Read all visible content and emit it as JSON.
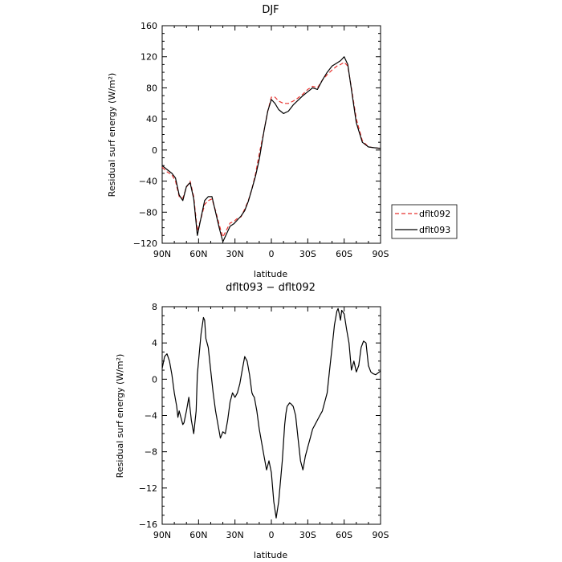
{
  "chart_data": [
    {
      "type": "line",
      "title": "DJF",
      "xlabel": "latitude",
      "ylabel": "Residual surf energy (W/m²)",
      "xlim": [
        90,
        -90
      ],
      "ylim": [
        -120,
        160
      ],
      "xticks": [
        90,
        60,
        30,
        0,
        -30,
        -60,
        -90
      ],
      "xtick_labels": [
        "90N",
        "60N",
        "30N",
        "0",
        "30S",
        "60S",
        "90S"
      ],
      "yticks": [
        -120,
        -80,
        -40,
        0,
        40,
        80,
        120,
        160
      ],
      "ytick_labels": [
        "−120",
        "−80",
        "−40",
        "0",
        "40",
        "80",
        "120",
        "160"
      ],
      "grid": false,
      "legend_position": "right-outside",
      "series": [
        {
          "name": "dflt092",
          "color": "#e8322e",
          "dash": "dashed",
          "x": [
            90,
            86,
            82,
            79,
            76,
            73,
            70,
            67,
            64,
            61,
            58,
            55,
            52,
            49,
            46,
            43,
            40,
            37,
            34,
            31,
            28,
            25,
            22,
            19,
            16,
            13,
            10,
            6,
            3,
            0,
            -3,
            -6,
            -10,
            -14,
            -18,
            -22,
            -26,
            -30,
            -34,
            -38,
            -42,
            -46,
            -50,
            -54,
            -57,
            -60,
            -63,
            -66,
            -70,
            -75,
            -80,
            -85,
            -90
          ],
          "y": [
            -22,
            -28,
            -32,
            -40,
            -60,
            -62,
            -48,
            -40,
            -60,
            -104,
            -88,
            -70,
            -65,
            -63,
            -78,
            -96,
            -112,
            -103,
            -94,
            -92,
            -88,
            -86,
            -76,
            -65,
            -50,
            -30,
            -5,
            25,
            50,
            68,
            68,
            63,
            60,
            60,
            63,
            67,
            72,
            78,
            82,
            80,
            90,
            97,
            103,
            108,
            110,
            113,
            108,
            80,
            40,
            12,
            4,
            3,
            2
          ]
        },
        {
          "name": "dflt093",
          "color": "#000000",
          "dash": "solid",
          "x": [
            90,
            86,
            82,
            79,
            76,
            73,
            70,
            67,
            64,
            61,
            58,
            55,
            52,
            49,
            46,
            43,
            40,
            37,
            34,
            31,
            28,
            25,
            22,
            19,
            16,
            13,
            10,
            6,
            3,
            0,
            -3,
            -6,
            -10,
            -14,
            -18,
            -22,
            -26,
            -30,
            -34,
            -38,
            -42,
            -46,
            -50,
            -54,
            -57,
            -60,
            -63,
            -66,
            -70,
            -75,
            -80,
            -85,
            -90
          ],
          "y": [
            -20,
            -25,
            -30,
            -36,
            -58,
            -65,
            -47,
            -42,
            -63,
            -110,
            -87,
            -65,
            -60,
            -60,
            -80,
            -100,
            -118,
            -108,
            -98,
            -95,
            -90,
            -85,
            -78,
            -66,
            -50,
            -33,
            -12,
            25,
            50,
            65,
            60,
            52,
            47,
            50,
            58,
            64,
            70,
            75,
            80,
            78,
            90,
            100,
            108,
            112,
            115,
            120,
            110,
            78,
            35,
            10,
            4,
            3,
            2
          ]
        }
      ]
    },
    {
      "type": "line",
      "title": "dflt093 − dflt092",
      "xlabel": "latitude",
      "ylabel": "Residual surf energy (W/m²)",
      "xlim": [
        90,
        -90
      ],
      "ylim": [
        -16,
        8
      ],
      "xticks": [
        90,
        60,
        30,
        0,
        -30,
        -60,
        -90
      ],
      "xtick_labels": [
        "90N",
        "60N",
        "30N",
        "0",
        "30S",
        "60S",
        "90S"
      ],
      "yticks": [
        -16,
        -12,
        -8,
        -4,
        0,
        4,
        8
      ],
      "ytick_labels": [
        "−16",
        "−12",
        "−8",
        "−4",
        "0",
        "4",
        "8"
      ],
      "grid": false,
      "series": [
        {
          "color": "#000000",
          "dash": "solid",
          "x": [
            90,
            88,
            86,
            84,
            82,
            80,
            78,
            77,
            76,
            75,
            74,
            73,
            72,
            70,
            68,
            66,
            64,
            62,
            61,
            60,
            58,
            56,
            55,
            54,
            53,
            52,
            50,
            48,
            46,
            44,
            42,
            40,
            38,
            36,
            34,
            32,
            30,
            28,
            26,
            24,
            22,
            20,
            18,
            16,
            15,
            14,
            12,
            10,
            8,
            6,
            4,
            2,
            0,
            -2,
            -4,
            -6,
            -8,
            -9,
            -10,
            -11,
            -12,
            -13,
            -14,
            -15,
            -16,
            -18,
            -20,
            -22,
            -24,
            -26,
            -28,
            -30,
            -32,
            -34,
            -36,
            -38,
            -40,
            -42,
            -44,
            -46,
            -48,
            -50,
            -52,
            -54,
            -55,
            -56,
            -57,
            -58,
            -60,
            -62,
            -64,
            -66,
            -68,
            -70,
            -72,
            -74,
            -76,
            -78,
            -80,
            -82,
            -84,
            -86,
            -88,
            -90
          ],
          "y": [
            1.2,
            2.5,
            2.8,
            2.0,
            0.5,
            -1.5,
            -3.0,
            -4.2,
            -3.5,
            -4.0,
            -4.5,
            -5.0,
            -4.8,
            -3.5,
            -2.0,
            -4.5,
            -6.0,
            -3.5,
            0.5,
            2.0,
            5.0,
            6.8,
            6.5,
            4.5,
            4.0,
            3.5,
            1.0,
            -1.5,
            -3.5,
            -5.0,
            -6.5,
            -5.8,
            -6.0,
            -4.5,
            -2.5,
            -1.5,
            -2.0,
            -1.5,
            -0.5,
            1.0,
            2.5,
            2.0,
            0.5,
            -1.5,
            -1.8,
            -2.0,
            -3.5,
            -5.5,
            -7.0,
            -8.5,
            -10.0,
            -9.0,
            -10.3,
            -13.5,
            -15.3,
            -13.5,
            -10.5,
            -9.0,
            -7.0,
            -5.0,
            -3.8,
            -3.0,
            -2.8,
            -2.6,
            -2.7,
            -3.0,
            -4.0,
            -6.5,
            -9.0,
            -10.0,
            -8.5,
            -7.5,
            -6.5,
            -5.5,
            -5.0,
            -4.5,
            -4.0,
            -3.5,
            -2.5,
            -1.5,
            1.0,
            3.5,
            6.0,
            7.5,
            7.8,
            7.2,
            6.5,
            7.6,
            7.2,
            5.5,
            4.0,
            1.0,
            2.0,
            0.8,
            1.5,
            3.5,
            4.2,
            4.0,
            1.5,
            0.8,
            0.6,
            0.5,
            0.7,
            0.9
          ]
        }
      ]
    }
  ]
}
